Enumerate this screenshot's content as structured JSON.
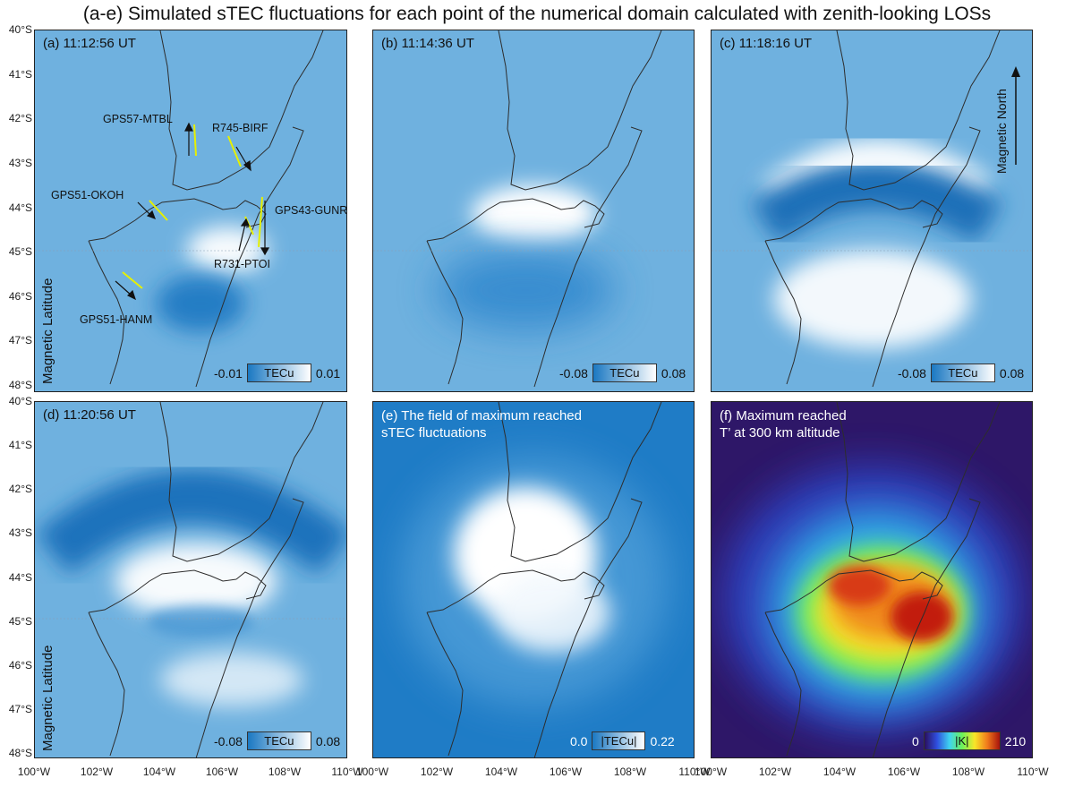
{
  "title": "(a-e) Simulated sTEC fluctuations for each point of the numerical domain calculated with zenith-looking LOSs",
  "y_axis": {
    "label": "Magnetic Latitude",
    "ticks": [
      "40°S",
      "41°S",
      "42°S",
      "43°S",
      "44°S",
      "45°S",
      "46°S",
      "47°S",
      "48°S"
    ]
  },
  "x_axis": {
    "ticks": [
      "100°W",
      "102°W",
      "104°W",
      "106°W",
      "108°W",
      "110°W"
    ]
  },
  "magnetic_north": "Magnetic North",
  "panels": {
    "a": {
      "label": "(a) 11:12:56 UT",
      "cbar_min": "-0.01",
      "cbar_max": "0.01",
      "cbar_unit": "TECu"
    },
    "b": {
      "label": "(b) 11:14:36 UT",
      "cbar_min": "-0.08",
      "cbar_max": "0.08",
      "cbar_unit": "TECu"
    },
    "c": {
      "label": "(c) 11:18:16 UT",
      "cbar_min": "-0.08",
      "cbar_max": "0.08",
      "cbar_unit": "TECu"
    },
    "d": {
      "label": "(d) 11:20:56 UT",
      "cbar_min": "-0.08",
      "cbar_max": "0.08",
      "cbar_unit": "TECu"
    },
    "e": {
      "label_line1": "(e) The field of maximum reached",
      "label_line2": "sTEC fluctuations",
      "cbar_min": "0.0",
      "cbar_max": "0.22",
      "cbar_unit": "|TECu|"
    },
    "f": {
      "label_line1": "(f) Maximum reached",
      "label_line2": "T’ at 300 km altitude",
      "cbar_min": "0",
      "cbar_max": "210",
      "cbar_unit": "|K|"
    }
  },
  "stations": [
    "GPS57-MTBL",
    "R745-BIRF",
    "GPS51-OKOH",
    "GPS43-GUNR",
    "R731-PTOI",
    "GPS51-HANM"
  ],
  "colors": {
    "base_blue": "#6fb1df",
    "dark_blue": "#1a78c2",
    "white": "#ffffff",
    "coast": "#2d2d2d",
    "station_line": "#e6f000"
  }
}
